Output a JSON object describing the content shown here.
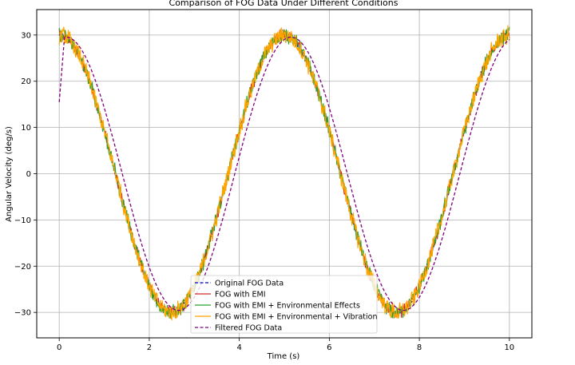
{
  "chart_data": {
    "type": "line",
    "title": "Comparison of FOG Data Under Different Conditions",
    "xlabel": "Time (s)",
    "ylabel": "Angular Velocity (deg/s)",
    "xlim": [
      -0.5,
      10.5
    ],
    "ylim": [
      -35.5,
      35.5
    ],
    "xticks": [
      0,
      2,
      4,
      6,
      8,
      10
    ],
    "yticks": [
      -30,
      -20,
      -10,
      0,
      10,
      20,
      30
    ],
    "xtick_labels": [
      "0",
      "2",
      "4",
      "6",
      "8",
      "10"
    ],
    "ytick_labels": [
      "−30",
      "−20",
      "−10",
      "0",
      "10",
      "20",
      "30"
    ],
    "grid": true,
    "legend_position": "lower center",
    "underlying_signal": {
      "amplitude": 30,
      "frequency_hz": 0.2
    },
    "series": [
      {
        "name": "Original FOG Data",
        "color": "#0000cc",
        "style": "dashed",
        "noise_amplitude": 0.4
      },
      {
        "name": "FOG with EMI",
        "color": "#d62728",
        "style": "solid",
        "noise_amplitude": 1.0
      },
      {
        "name": "FOG with EMI + Environmental Effects",
        "color": "#2ca02c",
        "style": "solid",
        "noise_amplitude": 1.3
      },
      {
        "name": "FOG with EMI + Environmental + Vibration",
        "color": "#ffa500",
        "style": "solid",
        "noise_amplitude": 1.6
      },
      {
        "name": "Filtered FOG Data",
        "color": "#800080",
        "style": "dashed",
        "lag_s": 0.15,
        "start_value": 15.5
      }
    ]
  }
}
